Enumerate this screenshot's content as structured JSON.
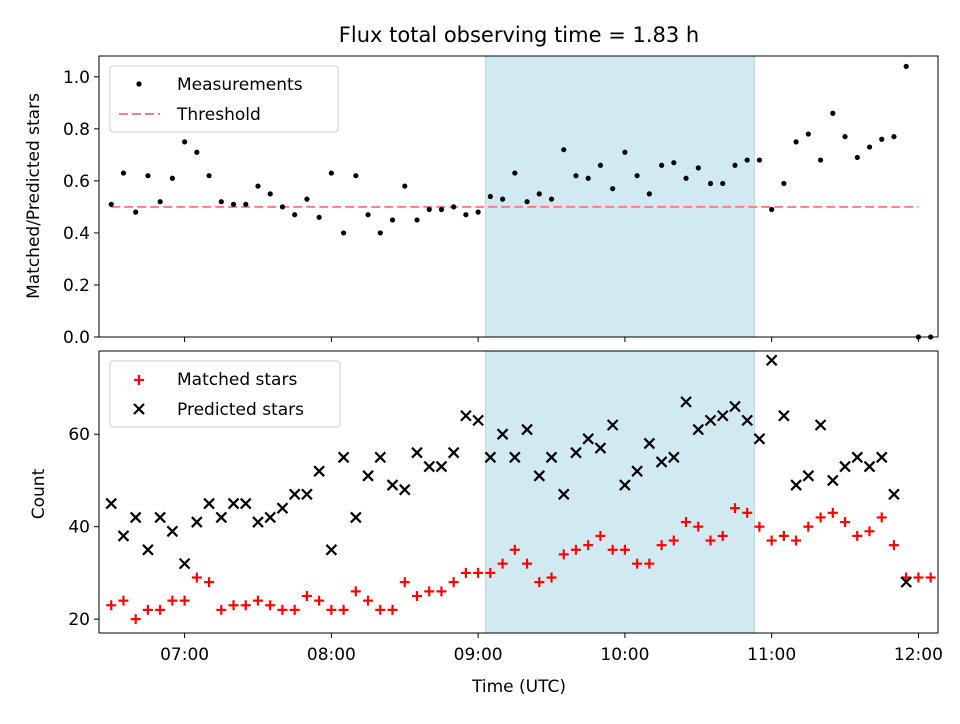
{
  "figure": {
    "title": "Flux total observing time = 1.83 h",
    "xlabel": "Time (UTC)",
    "x_ticks": [
      "07:00",
      "08:00",
      "09:00",
      "10:00",
      "11:00",
      "12:00"
    ],
    "shaded_region": {
      "start": "09:03",
      "end": "10:53",
      "color": "#add8e6"
    }
  },
  "chart_data": [
    {
      "type": "scatter",
      "ylabel": "Matched/Predicted stars",
      "ylim": [
        0,
        1.08
      ],
      "y_ticks": [
        "0.0",
        "0.2",
        "0.4",
        "0.6",
        "0.8",
        "1.0"
      ],
      "legend_position": "top-left",
      "series": [
        {
          "name": "Measurements",
          "marker": "dot",
          "color": "#000000",
          "points": [
            [
              "06:30",
              0.51
            ],
            [
              "06:35",
              0.63
            ],
            [
              "06:40",
              0.48
            ],
            [
              "06:45",
              0.62
            ],
            [
              "06:50",
              0.52
            ],
            [
              "06:55",
              0.61
            ],
            [
              "07:00",
              0.75
            ],
            [
              "07:05",
              0.71
            ],
            [
              "07:10",
              0.62
            ],
            [
              "07:15",
              0.52
            ],
            [
              "07:20",
              0.51
            ],
            [
              "07:25",
              0.51
            ],
            [
              "07:30",
              0.58
            ],
            [
              "07:35",
              0.55
            ],
            [
              "07:40",
              0.5
            ],
            [
              "07:45",
              0.47
            ],
            [
              "07:50",
              0.53
            ],
            [
              "07:55",
              0.46
            ],
            [
              "08:00",
              0.63
            ],
            [
              "08:05",
              0.4
            ],
            [
              "08:10",
              0.62
            ],
            [
              "08:15",
              0.47
            ],
            [
              "08:20",
              0.4
            ],
            [
              "08:25",
              0.45
            ],
            [
              "08:30",
              0.58
            ],
            [
              "08:35",
              0.45
            ],
            [
              "08:40",
              0.49
            ],
            [
              "08:45",
              0.49
            ],
            [
              "08:50",
              0.5
            ],
            [
              "08:55",
              0.47
            ],
            [
              "09:00",
              0.48
            ],
            [
              "09:05",
              0.54
            ],
            [
              "09:10",
              0.53
            ],
            [
              "09:15",
              0.63
            ],
            [
              "09:20",
              0.52
            ],
            [
              "09:25",
              0.55
            ],
            [
              "09:30",
              0.53
            ],
            [
              "09:35",
              0.72
            ],
            [
              "09:40",
              0.62
            ],
            [
              "09:45",
              0.61
            ],
            [
              "09:50",
              0.66
            ],
            [
              "09:55",
              0.57
            ],
            [
              "10:00",
              0.71
            ],
            [
              "10:05",
              0.62
            ],
            [
              "10:10",
              0.55
            ],
            [
              "10:15",
              0.66
            ],
            [
              "10:20",
              0.67
            ],
            [
              "10:25",
              0.61
            ],
            [
              "10:30",
              0.65
            ],
            [
              "10:35",
              0.59
            ],
            [
              "10:40",
              0.59
            ],
            [
              "10:45",
              0.66
            ],
            [
              "10:50",
              0.68
            ],
            [
              "10:55",
              0.68
            ],
            [
              "11:00",
              0.49
            ],
            [
              "11:05",
              0.59
            ],
            [
              "11:10",
              0.75
            ],
            [
              "11:15",
              0.78
            ],
            [
              "11:20",
              0.68
            ],
            [
              "11:25",
              0.86
            ],
            [
              "11:30",
              0.77
            ],
            [
              "11:35",
              0.69
            ],
            [
              "11:40",
              0.73
            ],
            [
              "11:45",
              0.76
            ],
            [
              "11:50",
              0.77
            ],
            [
              "11:55",
              1.04
            ],
            [
              "12:00",
              0.0
            ],
            [
              "12:05",
              0.0
            ]
          ]
        },
        {
          "name": "Threshold",
          "marker": "dashed-line",
          "color": "#ff7f7f",
          "points": [
            [
              "06:30",
              0.5
            ],
            [
              "12:00",
              0.5
            ]
          ]
        }
      ]
    },
    {
      "type": "scatter",
      "ylabel": "Count",
      "ylim": [
        17,
        78
      ],
      "y_ticks": [
        "20",
        "40",
        "60"
      ],
      "legend_position": "top-left",
      "series": [
        {
          "name": "Matched stars",
          "marker": "plus",
          "color": "#ff0000",
          "points": [
            [
              "06:30",
              23
            ],
            [
              "06:35",
              24
            ],
            [
              "06:40",
              20
            ],
            [
              "06:45",
              22
            ],
            [
              "06:50",
              22
            ],
            [
              "06:55",
              24
            ],
            [
              "07:00",
              24
            ],
            [
              "07:05",
              29
            ],
            [
              "07:10",
              28
            ],
            [
              "07:15",
              22
            ],
            [
              "07:20",
              23
            ],
            [
              "07:25",
              23
            ],
            [
              "07:30",
              24
            ],
            [
              "07:35",
              23
            ],
            [
              "07:40",
              22
            ],
            [
              "07:45",
              22
            ],
            [
              "07:50",
              25
            ],
            [
              "07:55",
              24
            ],
            [
              "08:00",
              22
            ],
            [
              "08:05",
              22
            ],
            [
              "08:10",
              26
            ],
            [
              "08:15",
              24
            ],
            [
              "08:20",
              22
            ],
            [
              "08:25",
              22
            ],
            [
              "08:30",
              28
            ],
            [
              "08:35",
              25
            ],
            [
              "08:40",
              26
            ],
            [
              "08:45",
              26
            ],
            [
              "08:50",
              28
            ],
            [
              "08:55",
              30
            ],
            [
              "09:00",
              30
            ],
            [
              "09:05",
              30
            ],
            [
              "09:10",
              32
            ],
            [
              "09:15",
              35
            ],
            [
              "09:20",
              32
            ],
            [
              "09:25",
              28
            ],
            [
              "09:30",
              29
            ],
            [
              "09:35",
              34
            ],
            [
              "09:40",
              35
            ],
            [
              "09:45",
              36
            ],
            [
              "09:50",
              38
            ],
            [
              "09:55",
              35
            ],
            [
              "10:00",
              35
            ],
            [
              "10:05",
              32
            ],
            [
              "10:10",
              32
            ],
            [
              "10:15",
              36
            ],
            [
              "10:20",
              37
            ],
            [
              "10:25",
              41
            ],
            [
              "10:30",
              40
            ],
            [
              "10:35",
              37
            ],
            [
              "10:40",
              38
            ],
            [
              "10:45",
              44
            ],
            [
              "10:50",
              43
            ],
            [
              "10:55",
              40
            ],
            [
              "11:00",
              37
            ],
            [
              "11:05",
              38
            ],
            [
              "11:10",
              37
            ],
            [
              "11:15",
              40
            ],
            [
              "11:20",
              42
            ],
            [
              "11:25",
              43
            ],
            [
              "11:30",
              41
            ],
            [
              "11:35",
              38
            ],
            [
              "11:40",
              39
            ],
            [
              "11:45",
              42
            ],
            [
              "11:50",
              36
            ],
            [
              "11:55",
              29
            ],
            [
              "12:00",
              29
            ],
            [
              "12:05",
              29
            ]
          ]
        },
        {
          "name": "Predicted stars",
          "marker": "x",
          "color": "#000000",
          "points": [
            [
              "06:30",
              45
            ],
            [
              "06:35",
              38
            ],
            [
              "06:40",
              42
            ],
            [
              "06:45",
              35
            ],
            [
              "06:50",
              42
            ],
            [
              "06:55",
              39
            ],
            [
              "07:00",
              32
            ],
            [
              "07:05",
              41
            ],
            [
              "07:10",
              45
            ],
            [
              "07:15",
              42
            ],
            [
              "07:20",
              45
            ],
            [
              "07:25",
              45
            ],
            [
              "07:30",
              41
            ],
            [
              "07:35",
              42
            ],
            [
              "07:40",
              44
            ],
            [
              "07:45",
              47
            ],
            [
              "07:50",
              47
            ],
            [
              "07:55",
              52
            ],
            [
              "08:00",
              35
            ],
            [
              "08:05",
              55
            ],
            [
              "08:10",
              42
            ],
            [
              "08:15",
              51
            ],
            [
              "08:20",
              55
            ],
            [
              "08:25",
              49
            ],
            [
              "08:30",
              48
            ],
            [
              "08:35",
              56
            ],
            [
              "08:40",
              53
            ],
            [
              "08:45",
              53
            ],
            [
              "08:50",
              56
            ],
            [
              "08:55",
              64
            ],
            [
              "09:00",
              63
            ],
            [
              "09:05",
              55
            ],
            [
              "09:10",
              60
            ],
            [
              "09:15",
              55
            ],
            [
              "09:20",
              61
            ],
            [
              "09:25",
              51
            ],
            [
              "09:30",
              55
            ],
            [
              "09:35",
              47
            ],
            [
              "09:40",
              56
            ],
            [
              "09:45",
              59
            ],
            [
              "09:50",
              57
            ],
            [
              "09:55",
              62
            ],
            [
              "10:00",
              49
            ],
            [
              "10:05",
              52
            ],
            [
              "10:10",
              58
            ],
            [
              "10:15",
              54
            ],
            [
              "10:20",
              55
            ],
            [
              "10:25",
              67
            ],
            [
              "10:30",
              61
            ],
            [
              "10:35",
              63
            ],
            [
              "10:40",
              64
            ],
            [
              "10:45",
              66
            ],
            [
              "10:50",
              63
            ],
            [
              "10:55",
              59
            ],
            [
              "11:00",
              76
            ],
            [
              "11:05",
              64
            ],
            [
              "11:10",
              49
            ],
            [
              "11:15",
              51
            ],
            [
              "11:20",
              62
            ],
            [
              "11:25",
              50
            ],
            [
              "11:30",
              53
            ],
            [
              "11:35",
              55
            ],
            [
              "11:40",
              53
            ],
            [
              "11:45",
              55
            ],
            [
              "11:50",
              47
            ],
            [
              "11:55",
              28
            ]
          ]
        }
      ]
    }
  ]
}
